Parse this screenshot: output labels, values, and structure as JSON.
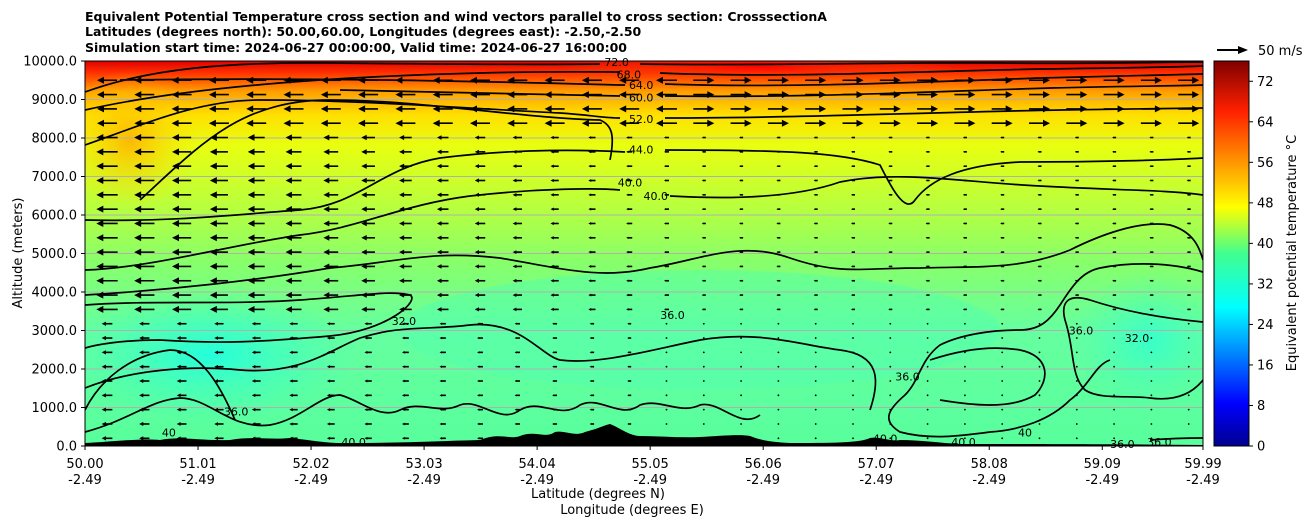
{
  "chart_data": {
    "type": "heatmap",
    "title_lines": [
      "Equivalent Potential Temperature cross section and wind vectors parallel to cross section: CrosssectionA",
      "Latitudes (degrees north): 50.00,60.00, Longitudes (degrees east): -2.50,-2.50",
      "Simulation start time: 2024-06-27 00:00:00, Valid time: 2024-06-27 16:00:00"
    ],
    "ylabel": "Altitude (meters)",
    "xlabel_lines": [
      "Latitude (degrees N)",
      "Longitude (degrees E)"
    ],
    "colorbar_label": "Equivalent potential temperature °C",
    "colorbar_range": [
      0,
      76
    ],
    "colorbar_ticks": [
      "0",
      "8",
      "16",
      "24",
      "32",
      "40",
      "48",
      "56",
      "64",
      "72"
    ],
    "colorbar_tick_values": [
      0,
      8,
      16,
      24,
      32,
      40,
      48,
      56,
      64,
      72
    ],
    "quiver_key": "50 m/s",
    "ylim": [
      0,
      10000
    ],
    "y_ticks": [
      "0.0",
      "1000.0",
      "2000.0",
      "3000.0",
      "4000.0",
      "5000.0",
      "6000.0",
      "7000.0",
      "8000.0",
      "9000.0",
      "10000.0"
    ],
    "y_tick_values": [
      0,
      1000,
      2000,
      3000,
      4000,
      5000,
      6000,
      7000,
      8000,
      9000,
      10000
    ],
    "xlim": [
      50.0,
      59.99
    ],
    "x_ticks": [
      {
        "lat": "50.00",
        "lon": "-2.49"
      },
      {
        "lat": "51.01",
        "lon": "-2.49"
      },
      {
        "lat": "52.02",
        "lon": "-2.49"
      },
      {
        "lat": "53.03",
        "lon": "-2.49"
      },
      {
        "lat": "54.04",
        "lon": "-2.49"
      },
      {
        "lat": "55.05",
        "lon": "-2.49"
      },
      {
        "lat": "56.06",
        "lon": "-2.49"
      },
      {
        "lat": "57.07",
        "lon": "-2.49"
      },
      {
        "lat": "58.08",
        "lon": "-2.49"
      },
      {
        "lat": "59.09",
        "lon": "-2.49"
      },
      {
        "lat": "59.99",
        "lon": "-2.49"
      }
    ],
    "x_tick_values": [
      50.0,
      51.01,
      52.02,
      53.03,
      54.04,
      55.05,
      56.06,
      57.07,
      58.08,
      59.09,
      59.99
    ],
    "grid": "horizontal",
    "contour_labels": [
      {
        "text": "72.0",
        "x": 54.75,
        "y": 9980
      },
      {
        "text": "68.0",
        "x": 54.86,
        "y": 9650
      },
      {
        "text": "64.0",
        "x": 54.97,
        "y": 9380
      },
      {
        "text": "60.0",
        "x": 54.97,
        "y": 9050
      },
      {
        "text": "52.0",
        "x": 54.97,
        "y": 8500
      },
      {
        "text": "44.0",
        "x": 54.97,
        "y": 7700
      },
      {
        "text": "40.0",
        "x": 54.87,
        "y": 6850
      },
      {
        "text": "40.0",
        "x": 55.1,
        "y": 6500
      },
      {
        "text": "36.0",
        "x": 55.25,
        "y": 3400
      },
      {
        "text": "32.0",
        "x": 52.85,
        "y": 3250
      },
      {
        "text": "36.0",
        "x": 51.35,
        "y": 900
      },
      {
        "text": "40",
        "x": 50.75,
        "y": 350
      },
      {
        "text": "40.0",
        "x": 52.4,
        "y": 100
      },
      {
        "text": "36.0",
        "x": 57.35,
        "y": 1800
      },
      {
        "text": "40.0",
        "x": 57.15,
        "y": 200
      },
      {
        "text": "40.0",
        "x": 57.85,
        "y": 100
      },
      {
        "text": "40",
        "x": 58.4,
        "y": 350
      },
      {
        "text": "36.0",
        "x": 58.9,
        "y": 3000
      },
      {
        "text": "32.0",
        "x": 59.4,
        "y": 2800
      },
      {
        "text": "36.0",
        "x": 59.6,
        "y": 100
      },
      {
        "text": "36.0",
        "x": 59.27,
        "y": 50
      }
    ],
    "colors": {
      "terrain": "#000000",
      "contour": "#000000",
      "arrow": "#000000",
      "grid": "#b0b0b0"
    }
  }
}
